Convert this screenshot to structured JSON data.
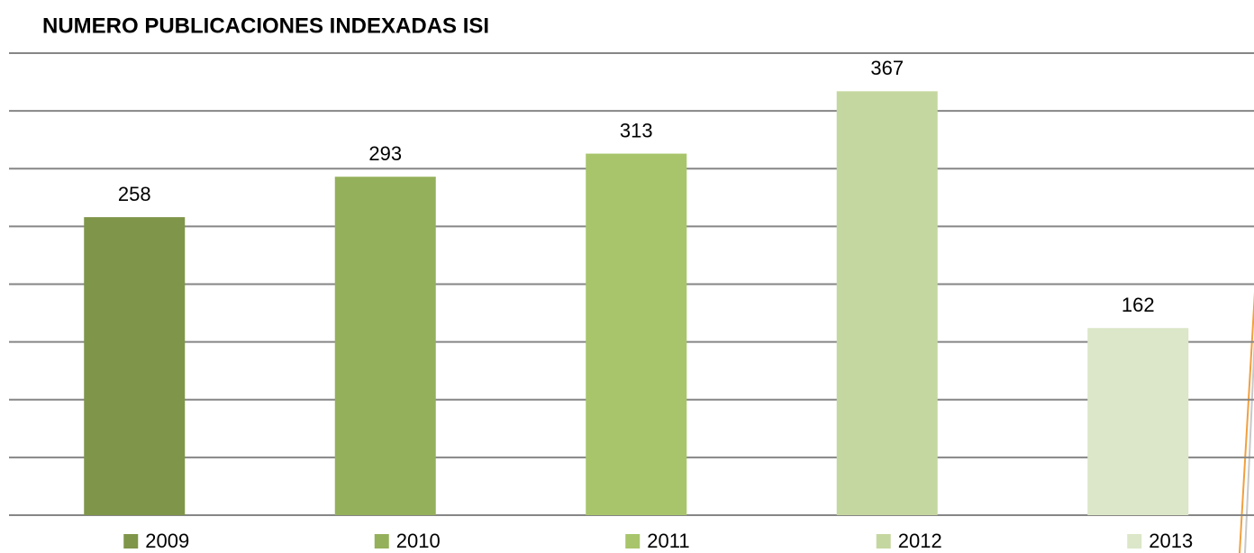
{
  "chart_data": {
    "type": "bar",
    "title": "NUMERO PUBLICACIONES INDEXADAS ISI",
    "categories": [
      "2009",
      "2010",
      "2011",
      "2012",
      "2013"
    ],
    "values": [
      258,
      293,
      313,
      367,
      162
    ],
    "colors": [
      "#7f9549",
      "#95b05b",
      "#a8c56b",
      "#c5d7a0",
      "#dbe7c8"
    ],
    "ylim": [
      0,
      400
    ],
    "yticks": [
      0,
      50,
      100,
      150,
      200,
      250,
      300,
      350,
      400
    ],
    "grid": true,
    "legend": "bottom"
  }
}
